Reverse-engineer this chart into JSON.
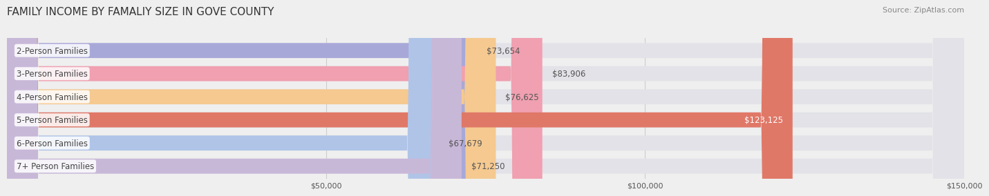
{
  "title": "FAMILY INCOME BY FAMALIY SIZE IN GOVE COUNTY",
  "source": "Source: ZipAtlas.com",
  "categories": [
    "2-Person Families",
    "3-Person Families",
    "4-Person Families",
    "5-Person Families",
    "6-Person Families",
    "7+ Person Families"
  ],
  "values": [
    73654,
    83906,
    76625,
    123125,
    67679,
    71250
  ],
  "bar_colors": [
    "#a8a8d8",
    "#f0a0b0",
    "#f5c990",
    "#e07868",
    "#b0c4e8",
    "#c8b8d8"
  ],
  "label_colors": [
    "#555555",
    "#555555",
    "#555555",
    "#ffffff",
    "#555555",
    "#555555"
  ],
  "value_labels": [
    "$73,654",
    "$83,906",
    "$76,625",
    "$123,125",
    "$67,679",
    "$71,250"
  ],
  "xlim": [
    0,
    150000
  ],
  "xtick_labels": [
    "$50,000",
    "$100,000",
    "$150,000"
  ],
  "background_color": "#efefef",
  "title_fontsize": 11,
  "label_fontsize": 8.5,
  "value_fontsize": 8.5,
  "source_fontsize": 8
}
